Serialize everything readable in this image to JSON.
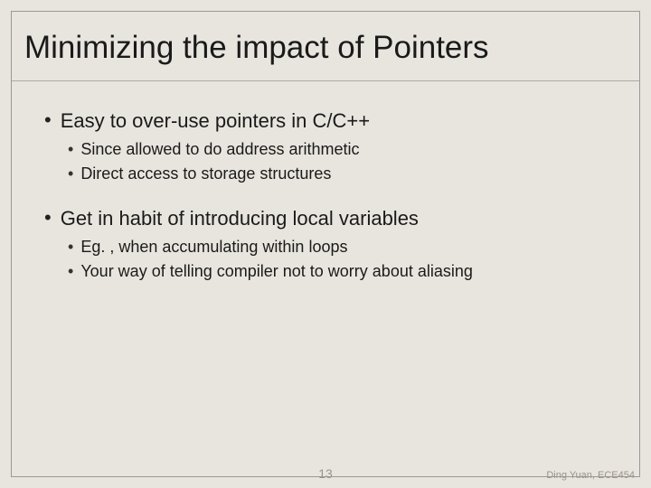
{
  "slide": {
    "title": "Minimizing the impact of Pointers",
    "bullets": [
      {
        "text": "Easy to over-use pointers in C/C++",
        "children": [
          {
            "text": "Since allowed to do address arithmetic"
          },
          {
            "text": "Direct access to storage structures"
          }
        ]
      },
      {
        "text": "Get in habit of introducing local variables",
        "children": [
          {
            "text": "Eg. , when accumulating within loops"
          },
          {
            "text": "Your way of telling compiler not to worry about aliasing"
          }
        ]
      }
    ],
    "page_number": "13",
    "author": "Ding Yuan, ECE454"
  },
  "style": {
    "background_color": "#e8e5de",
    "frame_border_color": "#999999",
    "title_fontsize": 35,
    "l1_fontsize": 22,
    "l2_fontsize": 18,
    "text_color": "#1a1a1a",
    "footer_color": "#9a958a"
  }
}
